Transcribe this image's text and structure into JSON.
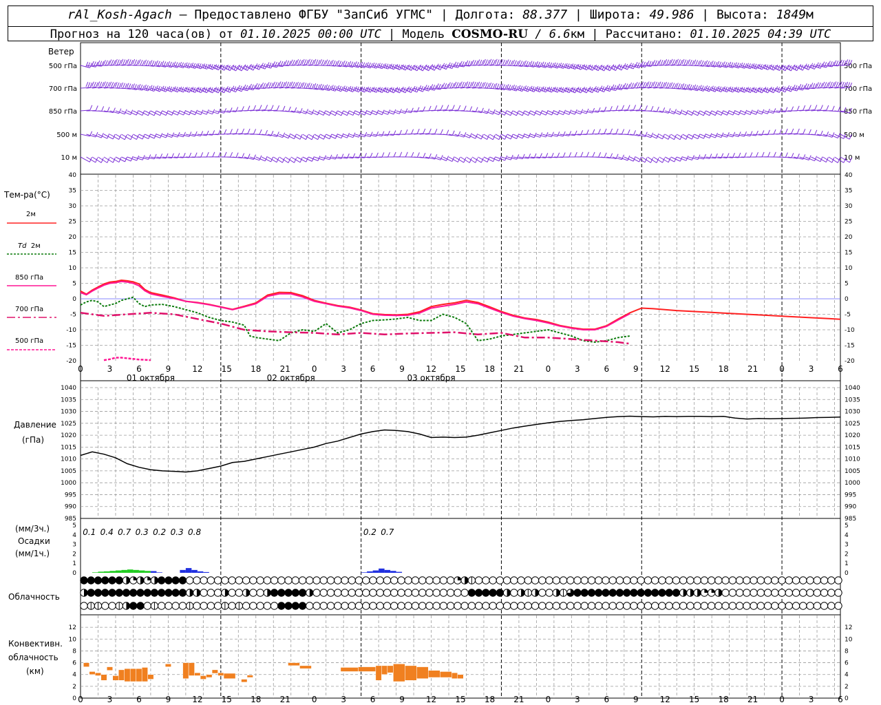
{
  "header": {
    "station": "rAl_Kosh-Agach",
    "dash": " – ",
    "provider_text": "Предоставлено ФГБУ \"ЗапСиб УГМС\"",
    "lon_label": "Долгота: ",
    "lon_value": "88.377",
    "lat_label": "Широта: ",
    "lat_value": "49.986",
    "alt_label": "Высота: ",
    "alt_value": "1849",
    "alt_unit": "м",
    "sep": " | ",
    "forecast_prefix": "Прогноз на 120 часа(ов) от ",
    "forecast_time": "01.10.2025 00:00 UTC",
    "model_label": "Модель ",
    "model_name": "COSMO-RU",
    "model_res": " / 6.6",
    "model_res_unit": "км",
    "computed_label": "Рассчитано: ",
    "computed_time": "01.10.2025 04:39 UTC"
  },
  "labels": {
    "wind": "Ветер",
    "wind_levels": [
      "500 гПа",
      "700 гПа",
      "850 гПа",
      "500 м",
      "10 м"
    ],
    "temp": "Тем-ра(°С)",
    "temp_2m": "2м",
    "td_td": "Td",
    "td_2m": "2м",
    "temp_850": "850 гПа",
    "temp_700": "700 гПа",
    "temp_500": "500 гПа",
    "pressure": "Давление",
    "pressure_unit": "(гПа)",
    "precip_unit3": "(мм/3ч.)",
    "precip": "Осадки",
    "precip_unit1": "(мм/1ч.)",
    "cloud": "Облачность",
    "conv1": "Конвективн.",
    "conv2": "облачность",
    "conv3": "(км)"
  },
  "colors": {
    "wind": "#7b2fd6",
    "t2m": "#ff2020",
    "td2m": "#0a7a0a",
    "t850": "#ff1493",
    "t700": "#e0106a",
    "t500": "#ff1493",
    "zero_line": "#6060ff",
    "pressure": "#000000",
    "precip_green": "#22cc22",
    "precip_blue": "#2030e0",
    "convective": "#f08020",
    "grid": "#9a9a9a"
  },
  "chart_data": [
    {
      "type": "line",
      "name": "temperature",
      "x_ticks": [
        "0",
        "3",
        "6",
        "9",
        "12",
        "15",
        "18",
        "21",
        "0",
        "3",
        "6",
        "9",
        "12",
        "15",
        "18",
        "21",
        "0",
        "3",
        "6",
        "9",
        "12",
        "15",
        "18",
        "21",
        "0",
        "3",
        "6"
      ],
      "day_labels": [
        "01 октября",
        "02 октября",
        "03 октября"
      ],
      "ylim": [
        -20,
        40
      ],
      "y_ticks": [
        -20,
        -15,
        -10,
        -5,
        0,
        5,
        10,
        15,
        20,
        25,
        30,
        35,
        40
      ],
      "series": [
        {
          "name": "2м",
          "x": [
            0,
            1,
            2,
            3,
            4,
            5,
            6,
            7,
            8,
            9,
            10,
            11,
            12,
            14,
            16,
            18,
            20,
            22,
            24,
            26,
            28,
            30,
            32,
            34,
            36,
            38,
            40,
            42,
            44,
            46,
            48,
            50,
            52,
            54,
            56,
            58,
            60,
            62,
            64,
            66,
            68,
            70,
            72,
            74,
            76,
            78,
            80,
            82,
            84,
            86,
            88,
            90,
            92,
            94,
            96,
            98,
            100,
            102,
            104,
            106,
            108,
            110,
            112,
            114,
            116,
            118,
            120,
            122,
            124,
            126,
            128,
            130
          ],
          "y": [
            2.5,
            1.5,
            2.8,
            3.8,
            4.8,
            5.4,
            5.6,
            6.0,
            5.8,
            5.5,
            4.8,
            3.0,
            2.0,
            1.2,
            0.3,
            -0.8,
            -1.2,
            -1.8,
            -2.6,
            -3.4,
            -2.4,
            -1.3,
            1.2,
            2.1,
            2.0,
            1.0,
            -0.5,
            -1.4,
            -2.2,
            -2.7,
            -3.6,
            -4.8,
            -5.1,
            -5.2,
            -5.0,
            -4.2,
            -2.5,
            -1.8,
            -1.3,
            -0.5,
            -1.2,
            -2.6,
            -4.1,
            -5.3,
            -6.2,
            -6.7,
            -7.5,
            -8.6,
            -9.3,
            -9.8,
            -9.8,
            -8.7,
            -6.5,
            -4.5,
            -3.0,
            -3.2,
            -3.5,
            -3.8,
            -4.0,
            -4.2,
            -4.4,
            -4.6,
            -4.8,
            -5.0,
            -5.2,
            -5.4,
            -5.6,
            -5.8,
            -6.0,
            -6.2,
            -6.4,
            -6.6
          ]
        },
        {
          "name": "Td 2м",
          "x": [
            0,
            1,
            2,
            3,
            4,
            5,
            6,
            7,
            8,
            9,
            10,
            11,
            12,
            14,
            16,
            18,
            20,
            22,
            24,
            26,
            28,
            29,
            30,
            32,
            34,
            36,
            38,
            40,
            42,
            44,
            46,
            48,
            50,
            52,
            54,
            56,
            58,
            60,
            62,
            64,
            66,
            68,
            70,
            72,
            74,
            76,
            78,
            80,
            82,
            84,
            86,
            88,
            90,
            92,
            94
          ],
          "y": [
            -2.0,
            -1.0,
            -0.5,
            -1.0,
            -2.5,
            -2.0,
            -1.5,
            -0.5,
            0.0,
            0.5,
            -1.5,
            -2.5,
            -2.0,
            -1.8,
            -2.5,
            -3.5,
            -4.5,
            -6.0,
            -7.0,
            -7.5,
            -8.5,
            -12.0,
            -12.5,
            -13.0,
            -13.5,
            -11.0,
            -10.0,
            -10.5,
            -8.0,
            -11.0,
            -10.0,
            -8.0,
            -7.0,
            -6.8,
            -6.5,
            -6.0,
            -7.0,
            -7.0,
            -5.0,
            -6.0,
            -8.0,
            -13.5,
            -13.0,
            -12.0,
            -11.5,
            -11.0,
            -10.5,
            -10.0,
            -11.0,
            -12.0,
            -13.5,
            -14.0,
            -13.5,
            -12.5,
            -12.0
          ]
        },
        {
          "name": "850 гПа",
          "x": [
            0,
            1,
            2,
            3,
            4,
            5,
            6,
            7,
            8,
            9,
            10,
            11,
            12,
            14,
            16,
            18,
            20,
            22,
            24,
            26,
            28,
            30,
            32,
            34,
            36,
            38,
            40,
            42,
            44,
            46,
            48,
            50,
            52,
            54,
            56,
            58,
            60,
            62,
            64,
            66,
            68,
            70,
            72,
            74,
            76,
            78,
            80,
            82,
            84,
            86,
            88,
            90,
            92,
            94
          ],
          "y": [
            2.0,
            1.3,
            2.5,
            3.5,
            4.4,
            5.0,
            5.2,
            5.6,
            5.4,
            5.0,
            4.2,
            2.6,
            1.6,
            0.8,
            0.1,
            -0.8,
            -1.3,
            -1.9,
            -2.7,
            -3.5,
            -2.6,
            -1.6,
            0.8,
            1.6,
            1.6,
            0.6,
            -0.8,
            -1.6,
            -2.4,
            -2.9,
            -3.8,
            -5.0,
            -5.3,
            -5.4,
            -5.3,
            -4.6,
            -3.0,
            -2.4,
            -1.8,
            -1.0,
            -1.6,
            -3.0,
            -4.4,
            -5.6,
            -6.4,
            -7.0,
            -7.8,
            -8.8,
            -9.5,
            -10.0,
            -10.0,
            -8.9,
            -6.8,
            -4.8
          ]
        },
        {
          "name": "700 гПа",
          "x": [
            0,
            4,
            8,
            12,
            16,
            20,
            24,
            28,
            32,
            36,
            40,
            44,
            48,
            52,
            56,
            60,
            64,
            68,
            72,
            76,
            80,
            84,
            88,
            92,
            94
          ],
          "y": [
            -4.5,
            -5.5,
            -5.0,
            -4.5,
            -5.0,
            -6.5,
            -8.0,
            -10.0,
            -10.5,
            -10.8,
            -11.0,
            -11.5,
            -11.0,
            -11.5,
            -11.2,
            -11.0,
            -10.8,
            -11.5,
            -11.0,
            -12.5,
            -12.5,
            -13.0,
            -13.5,
            -14.0,
            -14.5
          ]
        },
        {
          "name": "500 гПа",
          "x": [
            4,
            5,
            6,
            7,
            8,
            9,
            10,
            11,
            12
          ],
          "y": [
            -19.8,
            -19.5,
            -19.0,
            -19.0,
            -19.2,
            -19.4,
            -19.6,
            -19.7,
            -19.8
          ]
        }
      ]
    },
    {
      "type": "line",
      "name": "pressure",
      "ylabel": "Давление (гПа)",
      "ylim": [
        985,
        1040
      ],
      "y_ticks": [
        985,
        990,
        995,
        1000,
        1005,
        1010,
        1015,
        1020,
        1025,
        1030,
        1035,
        1040
      ],
      "series": [
        {
          "name": "Давление",
          "x": [
            0,
            2,
            4,
            6,
            8,
            10,
            12,
            14,
            16,
            18,
            20,
            22,
            24,
            26,
            28,
            30,
            32,
            34,
            36,
            38,
            40,
            42,
            44,
            46,
            48,
            50,
            52,
            54,
            56,
            58,
            60,
            62,
            64,
            66,
            68,
            70,
            72,
            74,
            76,
            78,
            80,
            82,
            84,
            86,
            88,
            90,
            92,
            94,
            96,
            98,
            100,
            102,
            104,
            106,
            108,
            110,
            112,
            114,
            116,
            118,
            120,
            122,
            124,
            126,
            128,
            130
          ],
          "y": [
            1011.5,
            1013,
            1012,
            1010.5,
            1008,
            1006.5,
            1005.5,
            1005,
            1004.8,
            1004.5,
            1005,
            1006,
            1007,
            1008.5,
            1009,
            1010,
            1011,
            1012,
            1013,
            1014,
            1015,
            1016.5,
            1017.5,
            1019,
            1020.5,
            1021.5,
            1022.2,
            1022,
            1021.5,
            1020.5,
            1019,
            1019.2,
            1019,
            1019.2,
            1020,
            1021,
            1022,
            1023,
            1023.8,
            1024.5,
            1025.2,
            1025.8,
            1026.2,
            1026.5,
            1027,
            1027.5,
            1027.8,
            1028,
            1027.8,
            1027.7,
            1027.9,
            1027.8,
            1027.9,
            1027.9,
            1027.8,
            1027.9,
            1027.2,
            1026.8,
            1027,
            1026.9,
            1027,
            1027.1,
            1027.2,
            1027.4,
            1027.5,
            1027.6
          ]
        }
      ]
    },
    {
      "type": "bar",
      "name": "precipitation",
      "ylim": [
        0,
        5
      ],
      "y_ticks": [
        0,
        1,
        2,
        3,
        4,
        5
      ],
      "totals_3h": [
        {
          "x": 1.5,
          "text": "0.1"
        },
        {
          "x": 4.5,
          "text": "0.4"
        },
        {
          "x": 7.5,
          "text": "0.7"
        },
        {
          "x": 10.5,
          "text": "0.3"
        },
        {
          "x": 13.5,
          "text": "0.2"
        },
        {
          "x": 16.5,
          "text": "0.3"
        },
        {
          "x": 19.5,
          "text": "0.8"
        },
        {
          "x": 49.5,
          "text": "0.2"
        },
        {
          "x": 52.5,
          "text": "0.7"
        }
      ],
      "green_x": [
        2,
        3,
        4,
        5,
        6,
        7,
        8,
        9,
        10,
        11,
        12
      ],
      "green_values": [
        0.05,
        0.12,
        0.15,
        0.2,
        0.25,
        0.3,
        0.35,
        0.3,
        0.25,
        0.2,
        0.15
      ],
      "blue_x": [
        12,
        13,
        17,
        18,
        19,
        20,
        21,
        48,
        49,
        50,
        51,
        52,
        53,
        54
      ],
      "blue_values": [
        0.18,
        0.05,
        0.3,
        0.5,
        0.3,
        0.15,
        0.08,
        0.05,
        0.15,
        0.25,
        0.45,
        0.3,
        0.2,
        0.1
      ]
    },
    {
      "type": "table",
      "name": "cloudiness",
      "rows": [
        "5,5,5,5,5,5,3,2,3,2,3,5,5,5,5,0,0,0,0,0,0,0,0,0,0,0,0,0,0,0,0,0,0,0,0,0,0,0,0,0,0,0,0,0,0,0,0,0,0,0,0,0,0,2,3,1,0,0,0,0,0,0,0,0,0,0,0,0,0,0,0,0,0,0,0,0,0,0,0,0,0,0,0,0,0,0,0,0,0,0,0,0,0,0,0,0,0,0,0,0,0,0,0,0,0,0,0,0,0,0,0,0,0,0,0,0,0,0,0,0,0,0,0,0,0,0",
        "3,5,5,5,5,5,5,5,5,5,5,5,5,5,5,3,3,0,0,0,3,0,0,3,0,0,3,5,5,5,5,5,3,0,0,0,0,0,0,0,0,0,0,0,0,0,0,0,0,0,0,0,0,0,0,5,5,5,5,5,3,0,3,1,3,0,0,3,1,4,5,5,5,5,5,5,5,5,5,5,5,5,5,5,5,3,3,3,2,2,3,0,0,0,0,0,0,0,0,0,0,0,0,0,0,0,0,0,0,0,0,0,0,0,0,0,0,0,0,0,0,0,0,0,0,0,0,0,0,0,0",
        "0,1,1,0,0,1,3,5,5,0,1,0,0,0,0,1,0,0,0,0,1,0,1,0,0,0,0,0,5,5,5,5,0,0,0,0,0,0,0,0,0,0,0,0,0,0,0,0,0,0,0,0,0,0,0,0,0,0,0,0,0,0,0,0,0,0,0,0,0,0,0,0,0,0,0,0,0,0,0,0,0,0,0,0,0,0,0,0,0,0,0,0,0,0,0,0,0,0,0,0,0,0,0,0,0,0,0,0,0,0,0,0,0,0,0,0,0,0,0,0,0,0,0,0,0,0,0,0,0,0,0"
      ]
    },
    {
      "type": "bar",
      "name": "convective_cloud",
      "ylim": [
        0,
        14
      ],
      "y_ticks": [
        0,
        2,
        4,
        6,
        8,
        10,
        12
      ],
      "bars": [
        {
          "x0": 0.5,
          "x1": 1.5,
          "y0": 5.3,
          "y1": 6.0
        },
        {
          "x0": 1.5,
          "x1": 2.5,
          "y0": 4.0,
          "y1": 4.5
        },
        {
          "x0": 2.5,
          "x1": 3.5,
          "y0": 3.8,
          "y1": 4.3
        },
        {
          "x0": 3.5,
          "x1": 4.5,
          "y0": 3.0,
          "y1": 4.0
        },
        {
          "x0": 4.5,
          "x1": 5.5,
          "y0": 4.7,
          "y1": 5.3
        },
        {
          "x0": 5.5,
          "x1": 6.5,
          "y0": 3.0,
          "y1": 3.8
        },
        {
          "x0": 6.5,
          "x1": 7.5,
          "y0": 3.0,
          "y1": 4.8
        },
        {
          "x0": 7.5,
          "x1": 8.5,
          "y0": 2.8,
          "y1": 5.0
        },
        {
          "x0": 8.5,
          "x1": 9.5,
          "y0": 2.8,
          "y1": 5.0
        },
        {
          "x0": 9.5,
          "x1": 10.5,
          "y0": 2.8,
          "y1": 5.0
        },
        {
          "x0": 10.5,
          "x1": 11.5,
          "y0": 2.8,
          "y1": 5.2
        },
        {
          "x0": 11.5,
          "x1": 12.5,
          "y0": 3.2,
          "y1": 4.0
        },
        {
          "x0": 14.5,
          "x1": 15.5,
          "y0": 5.3,
          "y1": 5.8
        },
        {
          "x0": 17.5,
          "x1": 18.5,
          "y0": 3.3,
          "y1": 6.0
        },
        {
          "x0": 18.5,
          "x1": 19.5,
          "y0": 3.8,
          "y1": 6.0
        },
        {
          "x0": 19.5,
          "x1": 20.5,
          "y0": 3.8,
          "y1": 4.3
        },
        {
          "x0": 20.5,
          "x1": 21.5,
          "y0": 3.2,
          "y1": 3.8
        },
        {
          "x0": 21.5,
          "x1": 22.5,
          "y0": 3.5,
          "y1": 4.0
        },
        {
          "x0": 22.5,
          "x1": 23.5,
          "y0": 4.2,
          "y1": 4.8
        },
        {
          "x0": 23.5,
          "x1": 24.5,
          "y0": 3.8,
          "y1": 4.3
        },
        {
          "x0": 24.5,
          "x1": 26.5,
          "y0": 3.3,
          "y1": 4.2
        },
        {
          "x0": 27.5,
          "x1": 28.5,
          "y0": 2.7,
          "y1": 3.2
        },
        {
          "x0": 28.5,
          "x1": 29.5,
          "y0": 3.5,
          "y1": 3.9
        },
        {
          "x0": 35.5,
          "x1": 37.5,
          "y0": 5.5,
          "y1": 6.0
        },
        {
          "x0": 37.5,
          "x1": 39.5,
          "y0": 5.0,
          "y1": 5.5
        },
        {
          "x0": 44.5,
          "x1": 47.5,
          "y0": 4.5,
          "y1": 5.2
        },
        {
          "x0": 47.5,
          "x1": 50.5,
          "y0": 4.5,
          "y1": 5.3
        },
        {
          "x0": 50.5,
          "x1": 51.5,
          "y0": 3.0,
          "y1": 5.5
        },
        {
          "x0": 51.5,
          "x1": 52.5,
          "y0": 4.0,
          "y1": 5.5
        },
        {
          "x0": 52.5,
          "x1": 53.5,
          "y0": 4.3,
          "y1": 5.5
        },
        {
          "x0": 53.5,
          "x1": 55.5,
          "y0": 2.8,
          "y1": 5.8
        },
        {
          "x0": 55.5,
          "x1": 57.5,
          "y0": 3.0,
          "y1": 5.5
        },
        {
          "x0": 57.5,
          "x1": 59.5,
          "y0": 3.3,
          "y1": 5.3
        },
        {
          "x0": 59.5,
          "x1": 61.5,
          "y0": 3.5,
          "y1": 4.7
        },
        {
          "x0": 61.5,
          "x1": 63.5,
          "y0": 3.5,
          "y1": 4.5
        },
        {
          "x0": 63.5,
          "x1": 64.5,
          "y0": 3.3,
          "y1": 4.3
        },
        {
          "x0": 64.5,
          "x1": 65.5,
          "y0": 3.3,
          "y1": 4.0
        }
      ]
    }
  ]
}
